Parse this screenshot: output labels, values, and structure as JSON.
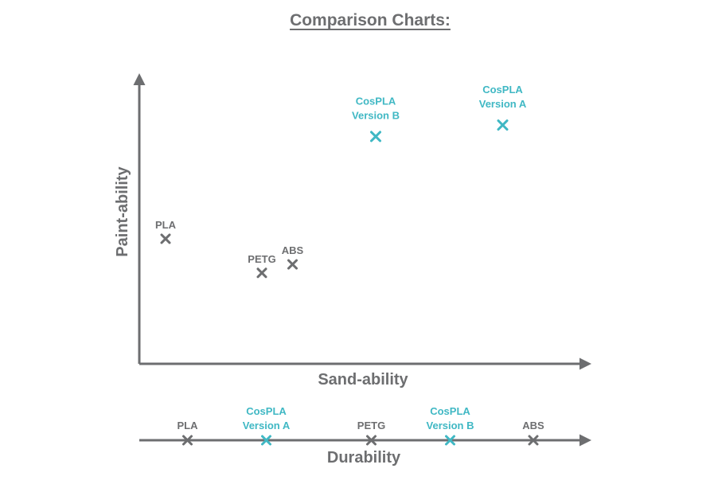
{
  "title": "Comparison Charts:",
  "colors": {
    "neutral": "#6d6e70",
    "highlight": "#40b8c4"
  },
  "chart_data": [
    {
      "type": "scatter",
      "title": "",
      "xlabel": "Sand-ability",
      "ylabel": "Paint-ability",
      "xlim": [
        0,
        100
      ],
      "ylim": [
        0,
        100
      ],
      "grid": false,
      "series": [
        {
          "points": [
            {
              "label": [
                "PLA"
              ],
              "x": 6,
              "y": 44,
              "highlight": false
            },
            {
              "label": [
                "PETG"
              ],
              "x": 28,
              "y": 32,
              "highlight": false
            },
            {
              "label": [
                "ABS"
              ],
              "x": 35,
              "y": 35,
              "highlight": false
            },
            {
              "label": [
                "CosPLA",
                "Version B"
              ],
              "x": 54,
              "y": 80,
              "highlight": true
            },
            {
              "label": [
                "CosPLA",
                "Version A"
              ],
              "x": 83,
              "y": 84,
              "highlight": true
            }
          ]
        }
      ]
    },
    {
      "type": "scatter",
      "title": "",
      "xlabel": "Durability",
      "xlim": [
        0,
        100
      ],
      "grid": false,
      "series": [
        {
          "points": [
            {
              "label": [
                "PLA"
              ],
              "x": 11,
              "highlight": false
            },
            {
              "label": [
                "CosPLA",
                "Version A"
              ],
              "x": 29,
              "highlight": true
            },
            {
              "label": [
                "PETG"
              ],
              "x": 53,
              "highlight": false
            },
            {
              "label": [
                "CosPLA",
                "Version B"
              ],
              "x": 71,
              "highlight": true
            },
            {
              "label": [
                "ABS"
              ],
              "x": 90,
              "highlight": false
            }
          ]
        }
      ]
    }
  ]
}
